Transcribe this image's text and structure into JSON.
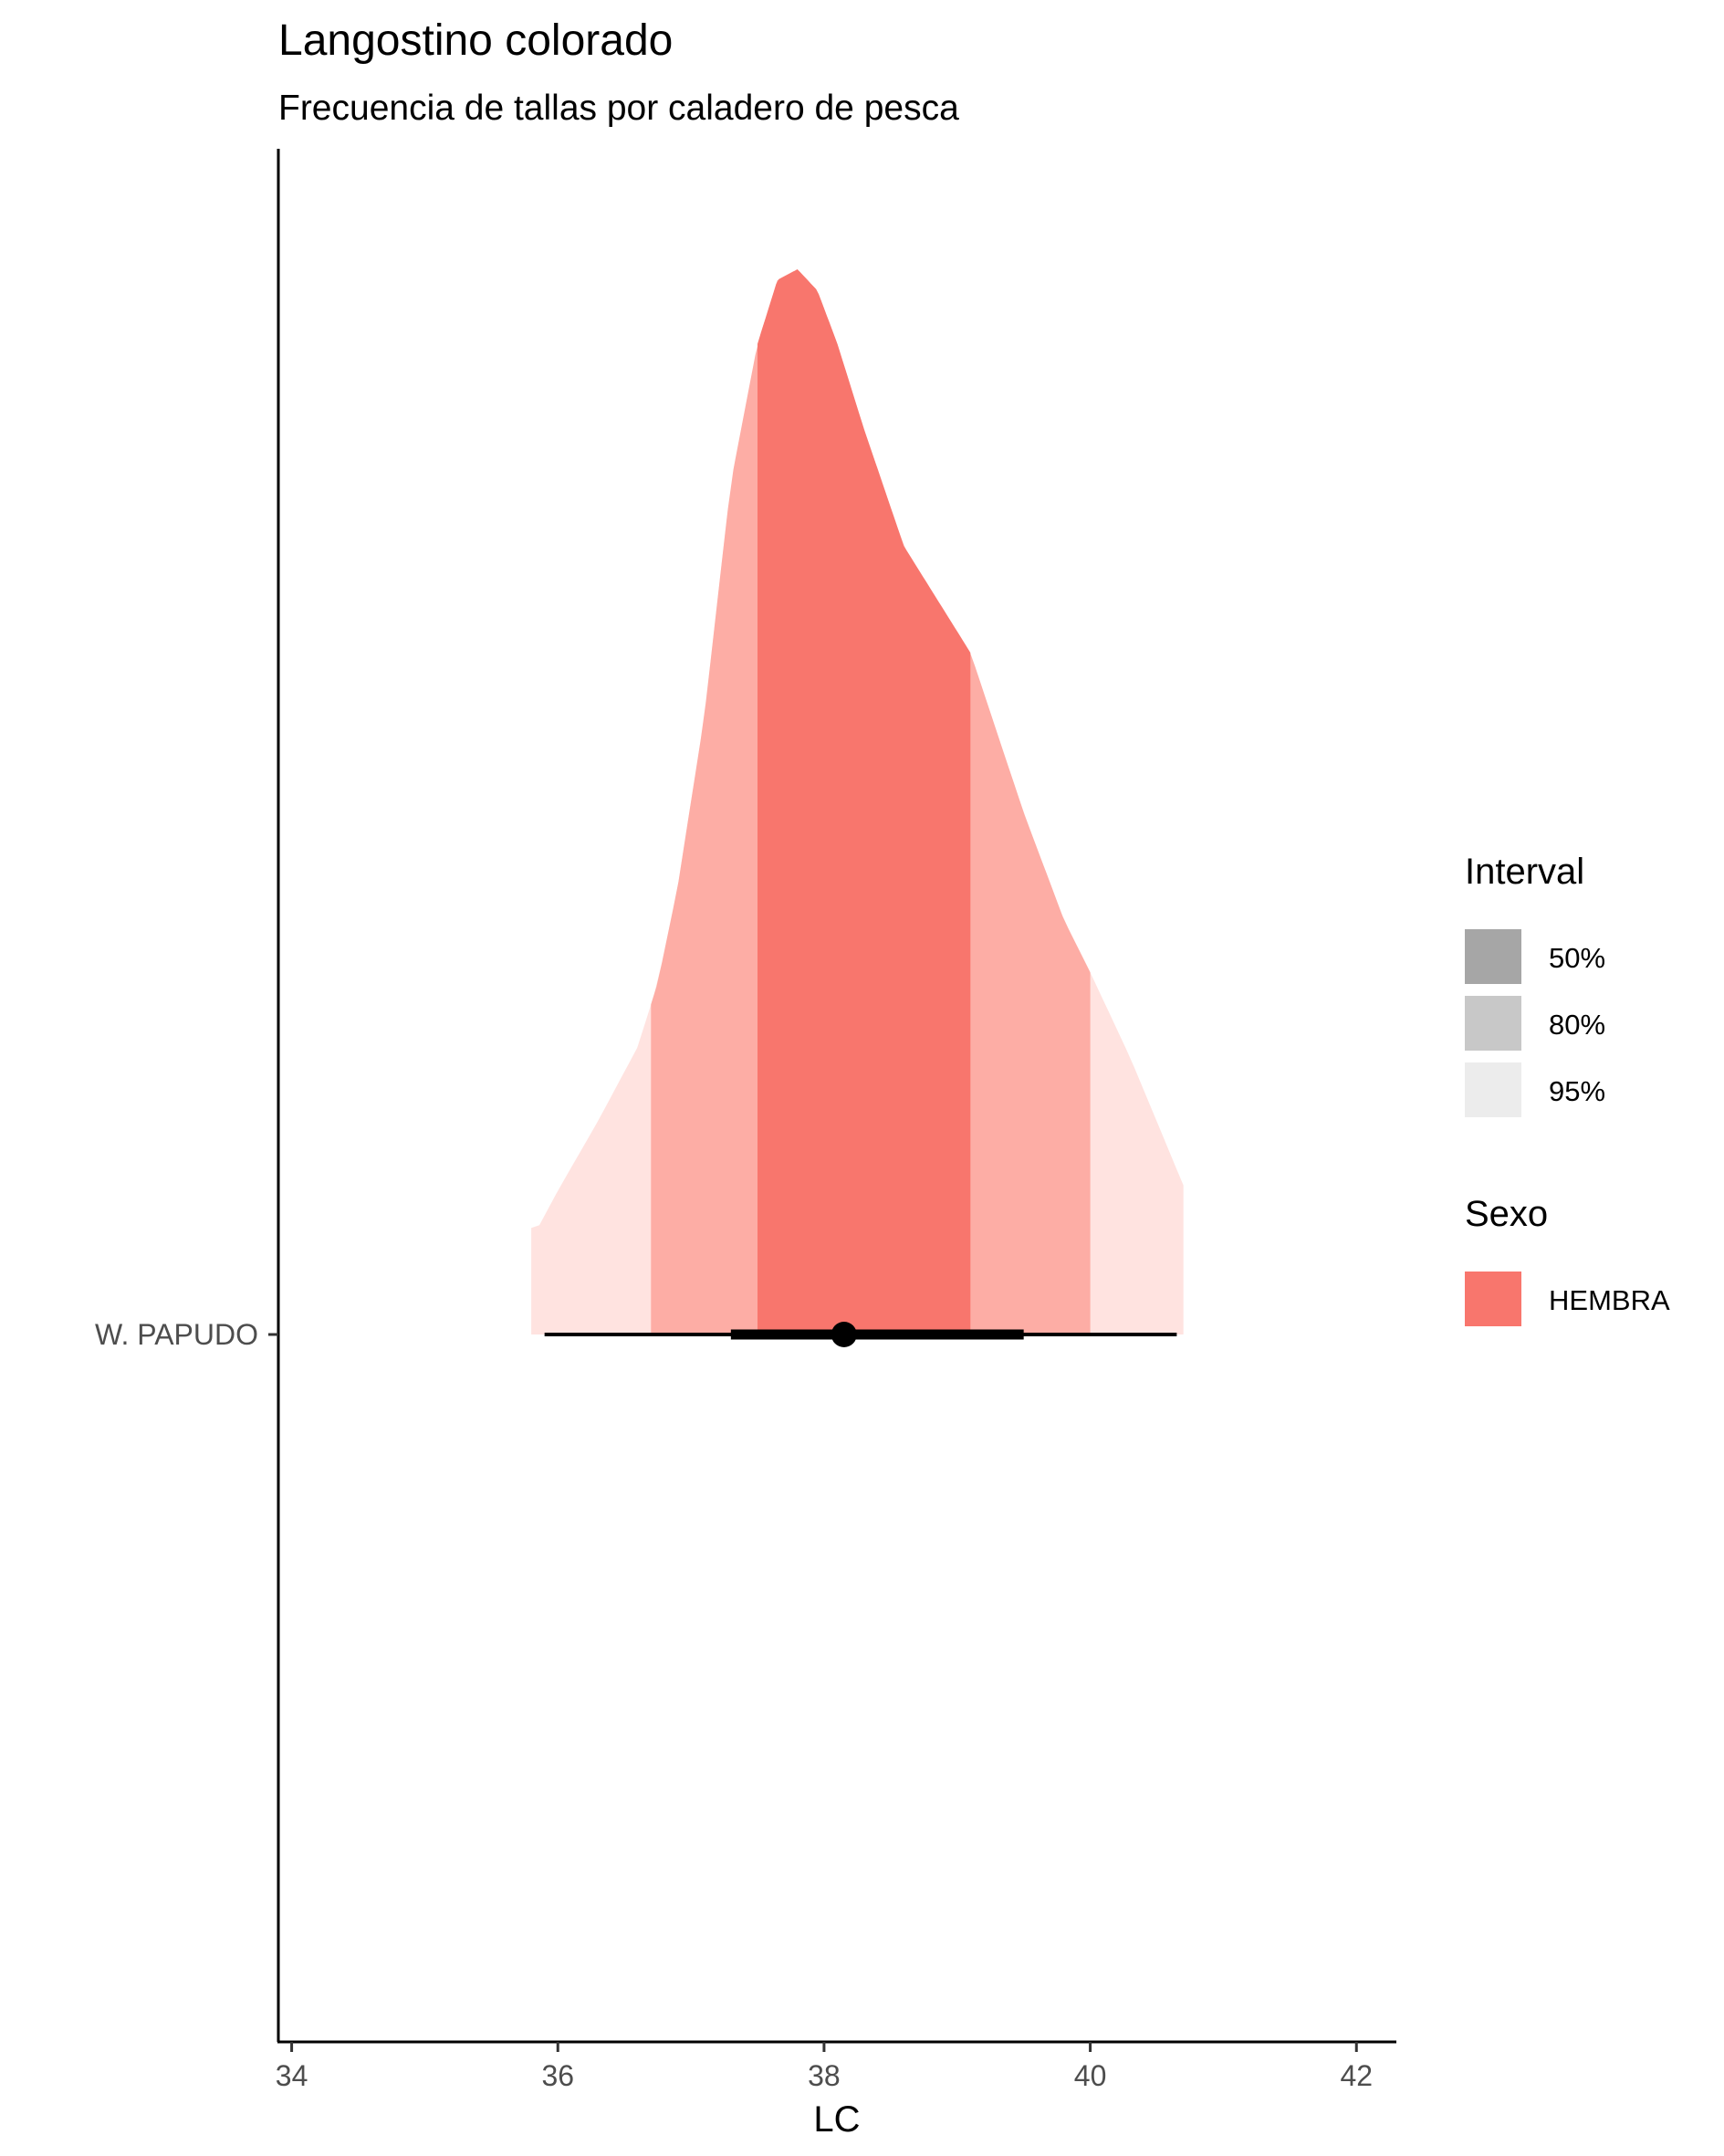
{
  "chart_data": {
    "type": "density-interval",
    "title": "Langostino colorado",
    "subtitle": "Frecuencia de tallas por caladero de pesca",
    "xlabel": "LC",
    "ylabel": "",
    "xlim": [
      33.9,
      42.3
    ],
    "xticks": [
      34,
      36,
      38,
      40,
      42
    ],
    "x_tick_labels": [
      "34",
      "36",
      "38",
      "40",
      "42"
    ],
    "categories": [
      "W. PAPUDO"
    ],
    "grid": false,
    "series": [
      {
        "name": "HEMBRA",
        "category": "W. PAPUDO",
        "color": "#F8766D",
        "density": {
          "x": [
            35.85,
            36.0,
            36.3,
            36.6,
            36.75,
            36.9,
            37.1,
            37.3,
            37.5,
            37.65,
            37.8,
            37.95,
            38.1,
            38.3,
            38.6,
            39.1,
            39.5,
            39.8,
            40.0,
            40.3,
            40.7
          ],
          "y": [
            0.1,
            0.135,
            0.2,
            0.27,
            0.33,
            0.42,
            0.58,
            0.8,
            0.93,
            0.99,
            1.0,
            0.98,
            0.93,
            0.85,
            0.74,
            0.64,
            0.49,
            0.39,
            0.34,
            0.26,
            0.14
          ]
        },
        "point": 38.15,
        "intervals": [
          {
            "level": "50%",
            "lower": 37.5,
            "upper": 39.1
          },
          {
            "level": "80%",
            "lower": 36.7,
            "upper": 40.0
          },
          {
            "level": "95%",
            "lower": 35.8,
            "upper": 40.7
          }
        ],
        "point_interval": {
          "thick": [
            37.3,
            39.5
          ],
          "thin": [
            35.9,
            40.65
          ]
        }
      }
    ],
    "legend": {
      "position": "right",
      "groups": [
        {
          "title": "Interval",
          "items": [
            {
              "label": "50%",
              "color": "#A6A6A6"
            },
            {
              "label": "80%",
              "color": "#C8C8C8"
            },
            {
              "label": "95%",
              "color": "#ECECEC"
            }
          ]
        },
        {
          "title": "Sexo",
          "items": [
            {
              "label": "HEMBRA",
              "color": "#F8766D"
            }
          ]
        }
      ]
    }
  }
}
